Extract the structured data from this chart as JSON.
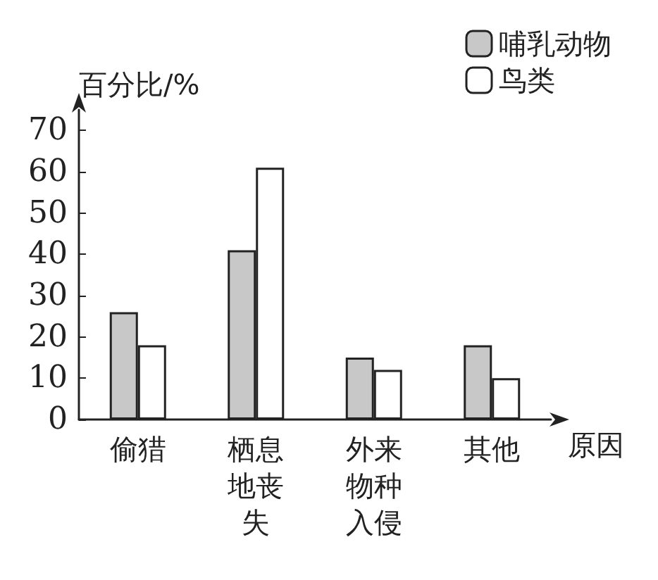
{
  "chart_data": {
    "type": "bar",
    "ylabel": "百分比/%",
    "xlabel": "原因",
    "categories": [
      "偷猎",
      "栖息地丧失",
      "外来物种入侵",
      "其他"
    ],
    "series": [
      {
        "name": "哺乳动物",
        "color": "#c8c8c8",
        "values": [
          26,
          41,
          15,
          18
        ]
      },
      {
        "name": "鸟类",
        "color": "#ffffff",
        "values": [
          18,
          61,
          12,
          10
        ]
      }
    ],
    "ylim": [
      0,
      75
    ],
    "yticks": [
      0,
      10,
      20,
      30,
      40,
      50,
      60,
      70
    ],
    "grid": false,
    "legend": "top right"
  }
}
